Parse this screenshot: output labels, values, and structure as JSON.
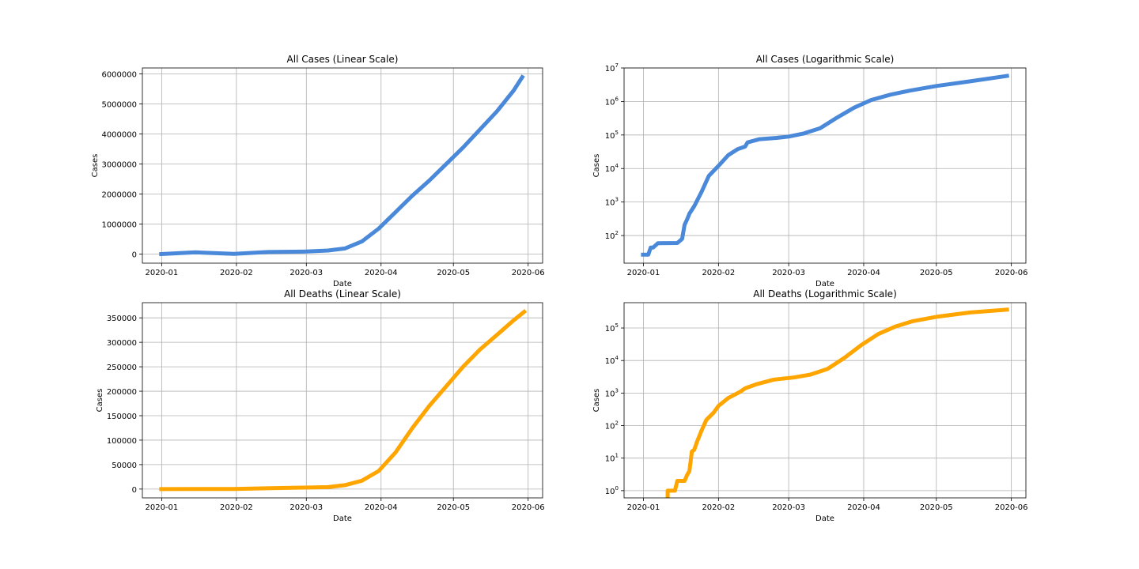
{
  "chart_data": [
    {
      "type": "line",
      "title": "All Cases (Linear Scale)",
      "xlabel": "Date",
      "ylabel": "Cases",
      "yscale": "linear",
      "grid": true,
      "color": "#4a88d9",
      "xlim": [
        "2019-12-24",
        "2020-06-07"
      ],
      "ylim": [
        -300000,
        6200000
      ],
      "xticks": [
        "2020-01",
        "2020-02",
        "2020-03",
        "2020-04",
        "2020-05",
        "2020-06"
      ],
      "yticks": [
        0,
        1000000,
        2000000,
        3000000,
        4000000,
        5000000,
        6000000
      ],
      "ytick_labels": [
        "0",
        "1000000",
        "2000000",
        "3000000",
        "4000000",
        "5000000",
        "6000000"
      ],
      "series": [
        {
          "x": [
            "2019-12-31",
            "2020-01-15",
            "2020-01-31",
            "2020-02-14",
            "2020-02-29",
            "2020-03-10",
            "2020-03-17",
            "2020-03-24",
            "2020-03-31",
            "2020-04-07",
            "2020-04-14",
            "2020-04-21",
            "2020-04-28",
            "2020-05-05",
            "2020-05-12",
            "2020-05-19",
            "2020-05-26",
            "2020-05-30"
          ],
          "y": [
            27,
            60000,
            10000,
            70000,
            85000,
            120000,
            190000,
            420000,
            850000,
            1400000,
            1950000,
            2450000,
            3000000,
            3550000,
            4150000,
            4750000,
            5450000,
            5950000
          ]
        }
      ]
    },
    {
      "type": "line",
      "title": "All Cases (Logarithmic Scale)",
      "xlabel": "Date",
      "ylabel": "Cases",
      "yscale": "log",
      "grid": true,
      "color": "#4a88d9",
      "xlim": [
        "2019-12-24",
        "2020-06-07"
      ],
      "ylim": [
        15,
        10000000
      ],
      "xticks": [
        "2020-01",
        "2020-02",
        "2020-03",
        "2020-04",
        "2020-05",
        "2020-06"
      ],
      "yticks": [
        100,
        1000,
        10000,
        100000,
        1000000,
        10000000
      ],
      "ytick_labels": [
        [
          "10",
          "2"
        ],
        [
          "10",
          "3"
        ],
        [
          "10",
          "4"
        ],
        [
          "10",
          "5"
        ],
        [
          "10",
          "6"
        ],
        [
          "10",
          "7"
        ]
      ],
      "series": [
        {
          "x": [
            "2019-12-31",
            "2020-01-03",
            "2020-01-04",
            "2020-01-05",
            "2020-01-07",
            "2020-01-15",
            "2020-01-17",
            "2020-01-18",
            "2020-01-19",
            "2020-01-20",
            "2020-01-22",
            "2020-01-25",
            "2020-01-28",
            "2020-02-01",
            "2020-02-05",
            "2020-02-09",
            "2020-02-12",
            "2020-02-13",
            "2020-02-18",
            "2020-02-25",
            "2020-03-01",
            "2020-03-07",
            "2020-03-14",
            "2020-03-21",
            "2020-03-28",
            "2020-04-04",
            "2020-04-12",
            "2020-04-20",
            "2020-05-01",
            "2020-05-15",
            "2020-05-31"
          ],
          "y": [
            27,
            27,
            44,
            44,
            59,
            60,
            80,
            210,
            300,
            450,
            750,
            2000,
            6000,
            12000,
            25000,
            38000,
            45000,
            60000,
            75000,
            82000,
            90000,
            110000,
            160000,
            330000,
            650000,
            1100000,
            1600000,
            2100000,
            2900000,
            4000000,
            5900000
          ]
        }
      ]
    },
    {
      "type": "line",
      "title": "All Deaths (Linear Scale)",
      "xlabel": "Date",
      "ylabel": "Cases",
      "yscale": "linear",
      "grid": true,
      "color": "#ffa500",
      "xlim": [
        "2019-12-24",
        "2020-06-07"
      ],
      "ylim": [
        -18000,
        381000
      ],
      "xticks": [
        "2020-01",
        "2020-02",
        "2020-03",
        "2020-04",
        "2020-05",
        "2020-06"
      ],
      "yticks": [
        0,
        50000,
        100000,
        150000,
        200000,
        250000,
        300000,
        350000
      ],
      "ytick_labels": [
        "0",
        "50000",
        "100000",
        "150000",
        "200000",
        "250000",
        "300000",
        "350000"
      ],
      "series": [
        {
          "x": [
            "2019-12-31",
            "2020-01-31",
            "2020-02-15",
            "2020-02-29",
            "2020-03-10",
            "2020-03-17",
            "2020-03-24",
            "2020-03-31",
            "2020-04-07",
            "2020-04-14",
            "2020-04-21",
            "2020-04-28",
            "2020-05-05",
            "2020-05-12",
            "2020-05-19",
            "2020-05-26",
            "2020-05-31"
          ],
          "y": [
            0,
            250,
            1700,
            3000,
            4000,
            8000,
            17000,
            37000,
            75000,
            125000,
            170000,
            210000,
            250000,
            285000,
            315000,
            345000,
            365000
          ]
        }
      ]
    },
    {
      "type": "line",
      "title": "All Deaths (Logarithmic Scale)",
      "xlabel": "Date",
      "ylabel": "Cases",
      "yscale": "log",
      "grid": true,
      "color": "#ffa500",
      "xlim": [
        "2019-12-24",
        "2020-06-07"
      ],
      "ylim": [
        0.6,
        600000
      ],
      "xticks": [
        "2020-01",
        "2020-02",
        "2020-03",
        "2020-04",
        "2020-05",
        "2020-06"
      ],
      "yticks": [
        1,
        10,
        100,
        1000,
        10000,
        100000
      ],
      "ytick_labels": [
        [
          "10",
          "0"
        ],
        [
          "10",
          "1"
        ],
        [
          "10",
          "2"
        ],
        [
          "10",
          "3"
        ],
        [
          "10",
          "4"
        ],
        [
          "10",
          "5"
        ]
      ],
      "series": [
        {
          "x": [
            "2020-01-11",
            "2020-01-11",
            "2020-01-14",
            "2020-01-15",
            "2020-01-18",
            "2020-01-19",
            "2020-01-20",
            "2020-01-21",
            "2020-01-22",
            "2020-01-23",
            "2020-01-25",
            "2020-01-27",
            "2020-01-30",
            "2020-02-01",
            "2020-02-05",
            "2020-02-10",
            "2020-02-12",
            "2020-02-17",
            "2020-02-24",
            "2020-03-03",
            "2020-03-10",
            "2020-03-17",
            "2020-03-24",
            "2020-03-31",
            "2020-04-07",
            "2020-04-14",
            "2020-04-21",
            "2020-05-01",
            "2020-05-15",
            "2020-05-31"
          ],
          "y": [
            0.6,
            1,
            1,
            2,
            2,
            3,
            4,
            16,
            18,
            30,
            70,
            150,
            250,
            400,
            700,
            1100,
            1400,
            1900,
            2600,
            3000,
            3700,
            5500,
            12000,
            30000,
            65000,
            110000,
            160000,
            220000,
            300000,
            370000
          ]
        }
      ]
    }
  ]
}
